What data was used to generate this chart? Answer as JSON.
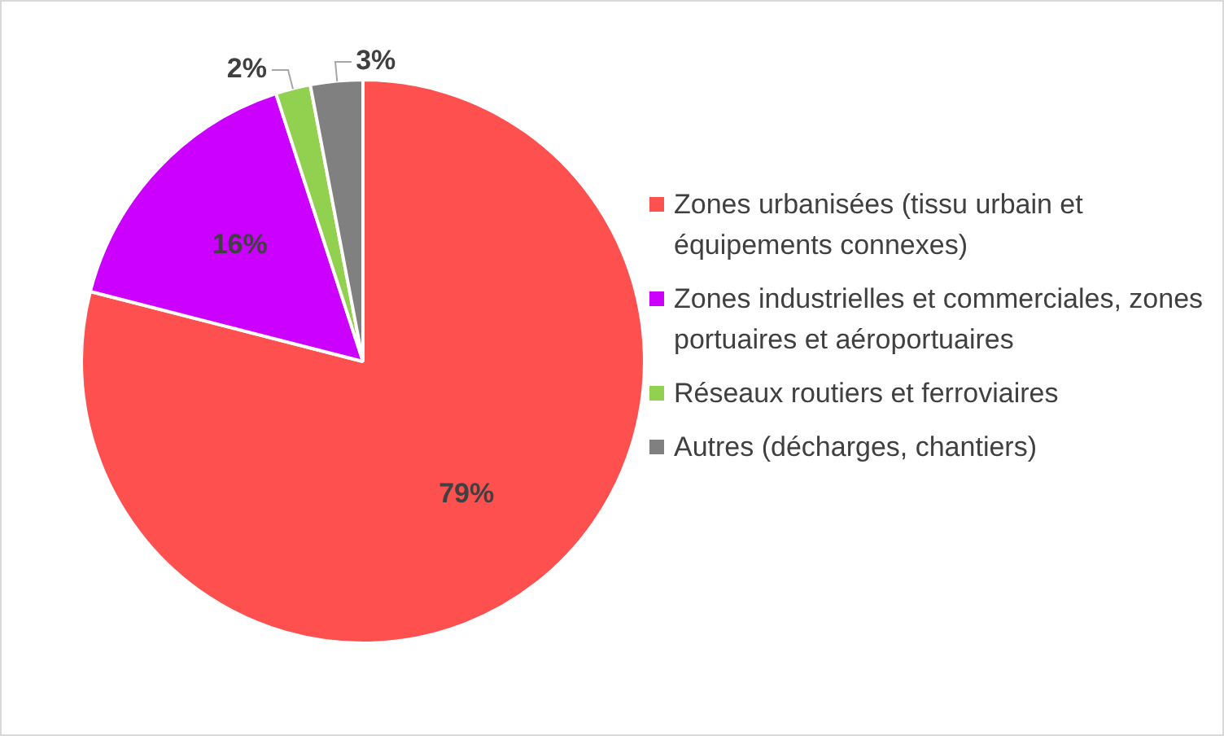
{
  "chart_data": {
    "type": "pie",
    "categories": [
      "Zones urbanisées (tissu urbain et équipements connexes)",
      "Zones industrielles et commerciales, zones portuaires et aéroportuaires",
      "Réseaux routiers et ferroviaires",
      "Autres (décharges, chantiers)"
    ],
    "values": [
      79,
      16,
      2,
      3
    ],
    "colors": [
      "#ff5050",
      "#cc00ff",
      "#92d050",
      "#808080"
    ],
    "value_labels": [
      "79%",
      "16%",
      "2%",
      "3%"
    ],
    "legend": "right"
  }
}
